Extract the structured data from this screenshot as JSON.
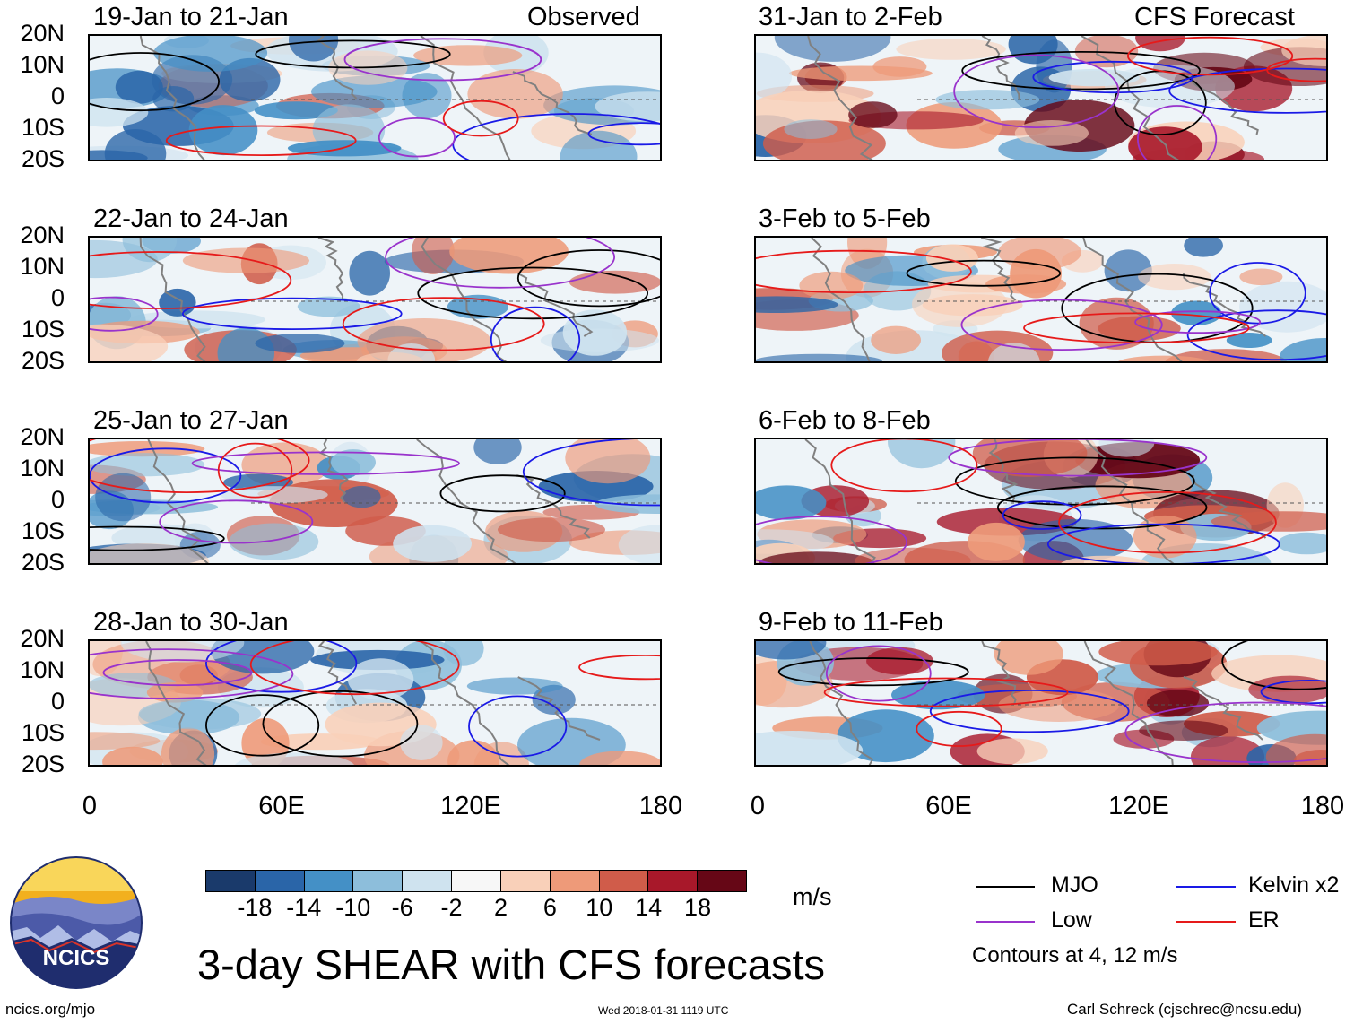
{
  "main_title": "3-day SHEAR with CFS forecasts",
  "left_column_label": "Observed",
  "right_column_label": "CFS Forecast",
  "panels_left": [
    {
      "period": "19-Jan to 21-Jan"
    },
    {
      "period": "22-Jan to 24-Jan"
    },
    {
      "period": "25-Jan to 27-Jan"
    },
    {
      "period": "28-Jan to 30-Jan"
    }
  ],
  "panels_right": [
    {
      "period": "31-Jan to 2-Feb"
    },
    {
      "period": "3-Feb to 5-Feb"
    },
    {
      "period": "6-Feb to 8-Feb"
    },
    {
      "period": "9-Feb to 11-Feb"
    }
  ],
  "lat_labels": [
    "20N",
    "10N",
    "0",
    "10S",
    "20S"
  ],
  "lon_labels": [
    "0",
    "60E",
    "120E",
    "180"
  ],
  "colorbar": {
    "unit": "m/s",
    "tick_labels": [
      "-18",
      "-14",
      "-10",
      "-6",
      "-2",
      "2",
      "6",
      "10",
      "14",
      "18"
    ],
    "colors": [
      "#1a3a6b",
      "#2a65a8",
      "#4490c6",
      "#8dbedb",
      "#cfe3ef",
      "#f7f7f7",
      "#f9d0b9",
      "#ee9a79",
      "#d05c4a",
      "#a8182a",
      "#660716"
    ]
  },
  "legend": {
    "mjo": "MJO",
    "kelvin": "Kelvin x2",
    "low": "Low",
    "er": "ER",
    "note": "Contours at 4, 12 m/s",
    "colors": {
      "mjo": "#000000",
      "kelvin": "#1a1ae6",
      "low": "#9933cc",
      "er": "#e61a1a"
    }
  },
  "logo_text": "NCICS",
  "footer": {
    "url": "ncics.org/mjo",
    "timestamp": "Wed 2018-01-31 1119 UTC",
    "author": "Carl Schreck (cjschrec@ncsu.edu)"
  }
}
